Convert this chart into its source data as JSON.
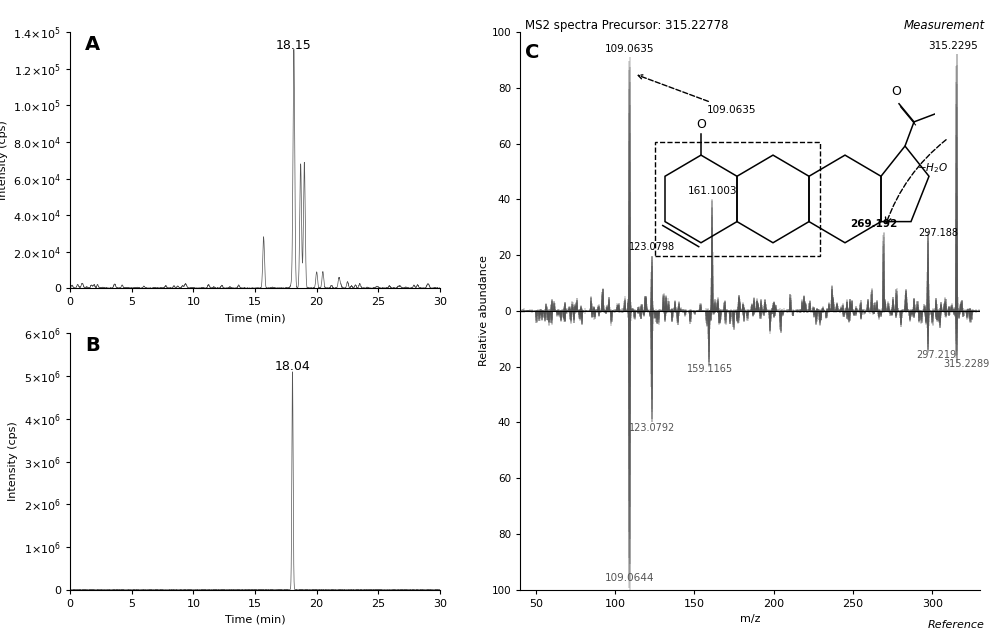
{
  "panel_A": {
    "label": "A",
    "peak_time": 18.15,
    "peak_label": "18.15",
    "ylim": [
      0,
      140000.0
    ],
    "yticks": [
      0,
      20000.0,
      40000.0,
      60000.0,
      80000.0,
      100000.0,
      120000.0,
      140000.0
    ],
    "xlim": [
      0,
      30
    ],
    "xticks": [
      0,
      5,
      10,
      15,
      20,
      25,
      30
    ],
    "xlabel": "Time (min)",
    "ylabel": "Intensity (cps)"
  },
  "panel_B": {
    "label": "B",
    "peak_time": 18.04,
    "peak_label": "18.04",
    "ylim": [
      0,
      6000000.0
    ],
    "yticks": [
      0,
      1000000.0,
      2000000.0,
      3000000.0,
      4000000.0,
      5000000.0,
      6000000.0
    ],
    "xlim": [
      0,
      30
    ],
    "xticks": [
      0,
      5,
      10,
      15,
      20,
      25,
      30
    ],
    "xlabel": "Time (min)",
    "ylabel": "Intensity (cps)"
  },
  "panel_C": {
    "label": "C",
    "title": "MS2 spectra Precursor: 315.22778",
    "title_right": "Measurement",
    "xlim": [
      40,
      330
    ],
    "xticks": [
      50,
      100,
      150,
      200,
      250,
      300
    ],
    "xlabel": "m/z",
    "ylabel": "Relative abundance",
    "xlabel_right": "Reference"
  },
  "bg_color": "#ffffff",
  "line_color": "#555555",
  "text_color": "#000000"
}
